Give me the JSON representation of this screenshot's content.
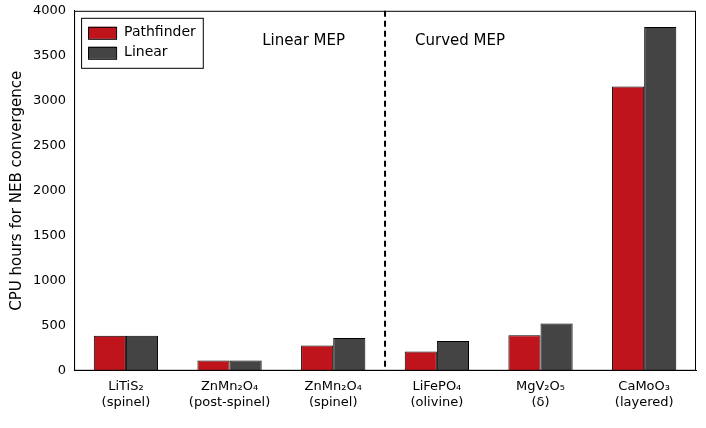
{
  "chart_data": {
    "type": "bar",
    "y_label": "CPU hours for NEB convergence",
    "categories": [
      [
        "LiTiS₂",
        "(spinel)"
      ],
      [
        "ZnMn₂O₄",
        "(post-spinel)"
      ],
      [
        "ZnMn₂O₄",
        "(spinel)"
      ],
      [
        "LiFePO₄",
        "(olivine)"
      ],
      [
        "MgV₂O₅",
        "(δ)"
      ],
      [
        "CaMoO₃",
        "(layered)"
      ]
    ],
    "series": [
      {
        "name": "Pathfinder",
        "color": "#c0141c",
        "values": [
          390,
          115,
          280,
          215,
          395,
          3160
        ]
      },
      {
        "name": "Linear",
        "color": "#444444",
        "values": [
          390,
          115,
          365,
          330,
          525,
          3820
        ]
      }
    ],
    "annotations": [
      "Linear MEP",
      "Curved MEP"
    ],
    "ylim": [
      0,
      4000
    ],
    "yticks": [
      0,
      500,
      1000,
      1500,
      2000,
      2500,
      3000,
      3500,
      4000
    ],
    "grid": false,
    "legend": "upper left"
  }
}
